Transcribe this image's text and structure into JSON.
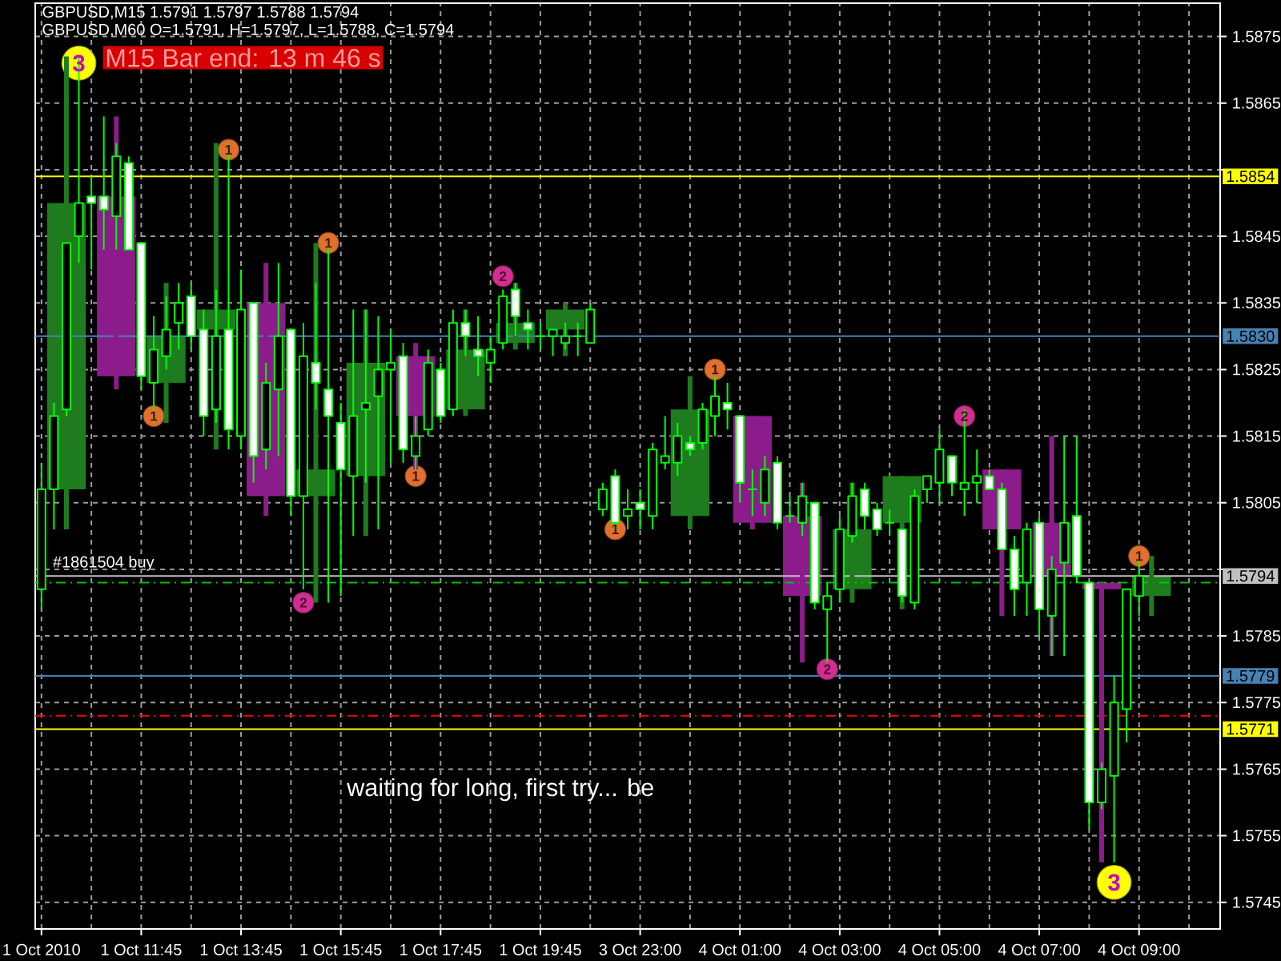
{
  "chart_data": {
    "type": "candlestick",
    "title": "GBPUSD,M15 1.5791 1.5797 1.5788 1.5794",
    "subtitle": "GBPUSD,M60 O=1.5791, H=1.5797, L=1.5788, C=1.5794",
    "categories": [
      "1 Oct 2010",
      null,
      null,
      null,
      null,
      null,
      null,
      null,
      "1 Oct 11:45",
      null,
      null,
      null,
      null,
      null,
      null,
      null,
      "1 Oct 13:45",
      null,
      null,
      null,
      null,
      null,
      null,
      null,
      "1 Oct 15:45",
      null,
      null,
      null,
      null,
      null,
      null,
      null,
      "1 Oct 17:45",
      null,
      null,
      null,
      null,
      null,
      null,
      null,
      "1 Oct 19:45",
      null,
      null,
      null,
      null,
      null,
      null,
      null,
      "3 Oct 23:00",
      null,
      null,
      null,
      null,
      null,
      null,
      null,
      "4 Oct 01:00",
      null,
      null,
      null,
      null,
      null,
      null,
      null,
      "4 Oct 03:00",
      null,
      null,
      null,
      null,
      null,
      null,
      null,
      "4 Oct 05:00",
      null,
      null,
      null,
      null,
      null,
      null,
      null,
      "4 Oct 07:00",
      null,
      null,
      null,
      null,
      null,
      null,
      null,
      "4 Oct 09:00",
      null,
      null,
      null,
      null,
      null,
      null
    ],
    "ohlc": [
      [
        1.5792,
        1.5811,
        1.5789,
        1.5807
      ],
      [
        1.5807,
        1.582,
        1.5801,
        1.5818
      ],
      [
        1.5819,
        1.5844,
        1.5818,
        1.5844
      ],
      [
        1.5845,
        1.5872,
        1.5841,
        1.585
      ],
      [
        1.5851,
        1.5854,
        1.584,
        1.585
      ],
      [
        1.5851,
        1.5863,
        1.5843,
        1.5849
      ],
      [
        1.5848,
        1.5859,
        1.5843,
        1.5857
      ],
      [
        1.5856,
        1.5857,
        1.5843,
        1.5843
      ],
      [
        1.5844,
        1.5844,
        1.5822,
        1.5824
      ],
      [
        1.5823,
        1.5833,
        1.5817,
        1.5828
      ],
      [
        1.5827,
        1.5836,
        1.5825,
        1.5831
      ],
      [
        1.5832,
        1.5838,
        1.5828,
        1.5835
      ],
      [
        1.5836,
        1.5838,
        1.5828,
        1.583
      ],
      [
        1.5831,
        1.5834,
        1.5815,
        1.5818
      ],
      [
        1.5819,
        1.5837,
        1.5817,
        1.583
      ],
      [
        1.5831,
        1.5859,
        1.5813,
        1.5816
      ],
      [
        1.5815,
        1.584,
        1.5813,
        1.5834
      ],
      [
        1.5835,
        1.5835,
        1.5808,
        1.5812
      ],
      [
        1.5813,
        1.5826,
        1.581,
        1.5823
      ],
      [
        1.5822,
        1.5841,
        1.5812,
        1.583
      ],
      [
        1.5831,
        1.5831,
        1.5803,
        1.5806
      ],
      [
        1.5806,
        1.5832,
        1.5792,
        1.5827
      ],
      [
        1.5826,
        1.5838,
        1.5819,
        1.5823
      ],
      [
        1.5822,
        1.5844,
        1.579,
        1.5818
      ],
      [
        1.5817,
        1.582,
        1.5791,
        1.581
      ],
      [
        1.5809,
        1.5834,
        1.58,
        1.5818
      ],
      [
        1.5819,
        1.5834,
        1.5808,
        1.582
      ],
      [
        1.5821,
        1.5833,
        1.5801,
        1.5825
      ],
      [
        1.5825,
        1.5831,
        1.5811,
        1.5826
      ],
      [
        1.5827,
        1.5829,
        1.5811,
        1.5813
      ],
      [
        1.5812,
        1.5818,
        1.581,
        1.5815
      ],
      [
        1.5816,
        1.5828,
        1.5815,
        1.5826
      ],
      [
        1.5825,
        1.5826,
        1.5817,
        1.5818
      ],
      [
        1.5819,
        1.5834,
        1.5818,
        1.5832
      ],
      [
        1.5832,
        1.5834,
        1.5827,
        1.583
      ],
      [
        1.5828,
        1.5833,
        1.5824,
        1.5827
      ],
      [
        1.5826,
        1.583,
        1.5823,
        1.5828
      ],
      [
        1.5829,
        1.5837,
        1.5828,
        1.5836
      ],
      [
        1.5837,
        1.5838,
        1.583,
        1.5833
      ],
      [
        1.5832,
        1.5834,
        1.5828,
        1.5831
      ],
      [
        1.583,
        1.5832,
        1.5828,
        1.583
      ],
      [
        1.583,
        1.5831,
        1.5827,
        1.5831
      ],
      [
        1.5829,
        1.5832,
        1.5828,
        1.583
      ],
      [
        1.583,
        1.5832,
        1.5827,
        1.583
      ],
      [
        1.5829,
        1.5835,
        1.5829,
        1.5834
      ],
      [
        1.5804,
        1.5808,
        1.5803,
        1.5807
      ],
      [
        1.5809,
        1.581,
        1.5801,
        1.5802
      ],
      [
        1.5803,
        1.5807,
        1.5801,
        1.5804
      ],
      [
        1.5805,
        1.5807,
        1.5801,
        1.5804
      ],
      [
        1.5803,
        1.5814,
        1.5801,
        1.5813
      ],
      [
        1.5811,
        1.5818,
        1.581,
        1.5812
      ],
      [
        1.5811,
        1.5817,
        1.5809,
        1.5815
      ],
      [
        1.5814,
        1.5815,
        1.5812,
        1.5813
      ],
      [
        1.5814,
        1.582,
        1.5813,
        1.5819
      ],
      [
        1.5818,
        1.5824,
        1.5815,
        1.5821
      ],
      [
        1.582,
        1.5823,
        1.5816,
        1.5819
      ],
      [
        1.5818,
        1.5818,
        1.5805,
        1.5808
      ],
      [
        1.5807,
        1.581,
        1.5803,
        1.5807
      ],
      [
        1.5805,
        1.5812,
        1.5803,
        1.581
      ],
      [
        1.5811,
        1.5812,
        1.5801,
        1.5802
      ],
      [
        1.5803,
        1.5806,
        1.5802,
        1.5803
      ],
      [
        1.5802,
        1.5808,
        1.58,
        1.5806
      ],
      [
        1.5805,
        1.5805,
        1.5789,
        1.579
      ],
      [
        1.5789,
        1.5793,
        1.5781,
        1.5791
      ],
      [
        1.5792,
        1.5803,
        1.579,
        1.5801
      ],
      [
        1.58,
        1.5808,
        1.5799,
        1.5806
      ],
      [
        1.5807,
        1.5808,
        1.5801,
        1.5803
      ],
      [
        1.5804,
        1.5805,
        1.58,
        1.5801
      ],
      [
        1.5802,
        1.5804,
        1.58,
        1.5802
      ],
      [
        1.5801,
        1.5801,
        1.579,
        1.5791
      ],
      [
        1.579,
        1.5807,
        1.5789,
        1.5806
      ],
      [
        1.5807,
        1.5809,
        1.5805,
        1.5809
      ],
      [
        1.5808,
        1.5816,
        1.5805,
        1.5813
      ],
      [
        1.5812,
        1.5812,
        1.5806,
        1.5808
      ],
      [
        1.5807,
        1.5819,
        1.5803,
        1.5808
      ],
      [
        1.5808,
        1.5813,
        1.5805,
        1.5809
      ],
      [
        1.5809,
        1.581,
        1.5807,
        1.5807
      ],
      [
        1.5807,
        1.5808,
        1.5798,
        1.5798
      ],
      [
        1.5798,
        1.58,
        1.5788,
        1.5792
      ],
      [
        1.5793,
        1.5802,
        1.5788,
        1.5801
      ],
      [
        1.5802,
        1.5803,
        1.5785,
        1.5789
      ],
      [
        1.5788,
        1.5797,
        1.5782,
        1.5795
      ],
      [
        1.5796,
        1.5815,
        1.5782,
        1.5802
      ],
      [
        1.5803,
        1.5815,
        1.5793,
        1.5794
      ],
      [
        1.5793,
        1.5793,
        1.5756,
        1.576
      ],
      [
        1.576,
        1.5766,
        1.5759,
        1.5765
      ],
      [
        1.5764,
        1.5779,
        1.5751,
        1.5775
      ],
      [
        1.5774,
        1.5792,
        1.5769,
        1.5792
      ],
      [
        1.5791,
        1.5797,
        1.5788,
        1.5794
      ],
      null,
      null,
      null,
      null,
      null,
      null
    ],
    "color": "#00ff00",
    "marker": "circle",
    "series": [
      {
        "type": "candlestick",
        "ohlc": [
          null,
          null,
          [
            1.5807,
            1.5872,
            1.5801,
            1.585
          ],
          null,
          null,
          null,
          [
            1.5851,
            1.5863,
            1.5822,
            1.5824
          ],
          null,
          null,
          null,
          [
            1.5823,
            1.5838,
            1.5817,
            1.583
          ],
          null,
          null,
          null,
          [
            1.5831,
            1.5859,
            1.5813,
            1.5834
          ],
          null,
          null,
          null,
          [
            1.5835,
            1.5841,
            1.5803,
            1.5806
          ],
          null,
          null,
          null,
          [
            1.5806,
            1.5844,
            1.579,
            1.581
          ],
          null,
          null,
          null,
          [
            1.5809,
            1.5834,
            1.58,
            1.5826
          ],
          null,
          null,
          null,
          [
            1.5827,
            1.5829,
            1.581,
            1.5818
          ],
          null,
          null,
          null,
          [
            1.5819,
            1.5834,
            1.5818,
            1.5828
          ],
          null,
          null,
          null,
          [
            1.5829,
            1.5838,
            1.5828,
            1.5832
          ],
          null,
          null,
          null,
          [
            1.5831,
            1.5835,
            1.5827,
            1.5834
          ],
          null,
          null,
          null,
          null,
          null,
          null,
          null,
          null,
          null,
          [
            1.5803,
            1.5824,
            1.5801,
            1.5819
          ],
          null,
          null,
          null,
          null,
          [
            1.5818,
            1.5818,
            1.5801,
            1.5802
          ],
          null,
          null,
          null,
          [
            1.5803,
            1.5808,
            1.5781,
            1.5791
          ],
          null,
          null,
          null,
          [
            1.5792,
            1.5808,
            1.579,
            1.5801
          ],
          null,
          null,
          null,
          [
            1.5802,
            1.5809,
            1.5789,
            1.5809
          ],
          null,
          null,
          null,
          null,
          null,
          null,
          null,
          [
            1.581,
            1.581,
            1.5788,
            1.5801
          ],
          null,
          null,
          null,
          [
            1.5802,
            1.5815,
            1.5782,
            1.5794
          ],
          null,
          null,
          null,
          [
            1.5793,
            1.5793,
            1.5751,
            1.5792
          ],
          null,
          null,
          null,
          [
            1.5791,
            1.5797,
            1.5788,
            1.5794
          ],
          null,
          null,
          null,
          null,
          null
        ],
        "colors": [
          null,
          null,
          "#1e7b1e",
          null,
          null,
          null,
          "#8c1c8c",
          null,
          null,
          null,
          "#1e7b1e",
          null,
          null,
          null,
          "#1e7b1e",
          null,
          null,
          null,
          "#8c1c8c",
          null,
          null,
          null,
          "#1e7b1e",
          null,
          null,
          null,
          "#1e7b1e",
          null,
          null,
          null,
          "#8c1c8c",
          null,
          null,
          null,
          "#1e7b1e",
          null,
          null,
          null,
          "#1e7b1e",
          null,
          null,
          null,
          "#1e7b1e",
          null,
          null,
          null,
          null,
          null,
          null,
          null,
          null,
          null,
          "#1e7b1e",
          null,
          null,
          null,
          null,
          "#8c1c8c",
          null,
          null,
          null,
          "#8c1c8c",
          null,
          null,
          null,
          "#1e7b1e",
          null,
          null,
          null,
          "#1e7b1e",
          null,
          null,
          null,
          null,
          null,
          null,
          null,
          "#8c1c8c",
          null,
          null,
          null,
          "#8c1c8c",
          null,
          null,
          null,
          "#8c1c8c",
          null,
          null,
          null,
          "#1e7b1e",
          null,
          null,
          null,
          null,
          null
        ]
      },
      {
        "type": "scatter",
        "name": "1",
        "color": "#e07030",
        "values": [
          null,
          null,
          null,
          null,
          null,
          null,
          null,
          null,
          null,
          1.5818,
          null,
          null,
          null,
          null,
          null,
          1.5858,
          null,
          null,
          null,
          null,
          null,
          null,
          null,
          1.5844,
          null,
          null,
          null,
          null,
          null,
          null,
          1.5809,
          null,
          null,
          null,
          null,
          null,
          null,
          null,
          null,
          null,
          null,
          null,
          null,
          null,
          null,
          null,
          1.5801,
          null,
          null,
          null,
          null,
          null,
          null,
          null,
          1.5825,
          null,
          null,
          null,
          null,
          null,
          null,
          null,
          null,
          null,
          null,
          null,
          null,
          null,
          null,
          null,
          null,
          null,
          null,
          null,
          null,
          null,
          null,
          null,
          null,
          null,
          null,
          null,
          null,
          null,
          null,
          null,
          null,
          null,
          1.5797,
          null,
          null,
          null,
          null,
          null,
          null
        ]
      },
      {
        "type": "scatter",
        "name": "2",
        "color": "#d02f90",
        "values": [
          null,
          null,
          null,
          null,
          null,
          null,
          null,
          null,
          null,
          null,
          null,
          null,
          null,
          null,
          null,
          null,
          null,
          null,
          null,
          null,
          null,
          1.579,
          null,
          null,
          null,
          null,
          null,
          null,
          null,
          null,
          null,
          null,
          null,
          null,
          null,
          null,
          null,
          1.5839,
          null,
          null,
          null,
          null,
          null,
          null,
          null,
          null,
          null,
          null,
          null,
          null,
          null,
          null,
          null,
          null,
          null,
          null,
          null,
          null,
          null,
          null,
          null,
          null,
          null,
          1.578,
          null,
          null,
          null,
          null,
          null,
          null,
          null,
          null,
          null,
          null,
          1.5818,
          null,
          null,
          null,
          null,
          null,
          null,
          null,
          null,
          null,
          null,
          null,
          null,
          null,
          null,
          null,
          null,
          null,
          null,
          null,
          null
        ]
      },
      {
        "type": "scatter",
        "name": "3",
        "color": "#ffff00",
        "values": [
          null,
          null,
          null,
          1.5871,
          null,
          null,
          null,
          null,
          null,
          null,
          null,
          null,
          null,
          null,
          null,
          null,
          null,
          null,
          null,
          null,
          null,
          null,
          null,
          null,
          null,
          null,
          null,
          null,
          null,
          null,
          null,
          null,
          null,
          null,
          null,
          null,
          null,
          null,
          null,
          null,
          null,
          null,
          null,
          null,
          null,
          null,
          null,
          null,
          null,
          null,
          null,
          null,
          null,
          null,
          null,
          null,
          null,
          null,
          null,
          null,
          null,
          null,
          null,
          null,
          null,
          null,
          null,
          null,
          null,
          null,
          null,
          null,
          null,
          null,
          null,
          null,
          null,
          null,
          null,
          null,
          null,
          null,
          null,
          null,
          null,
          null,
          1.5748,
          null,
          null,
          null,
          null,
          null,
          null,
          null,
          null
        ]
      }
    ],
    "ylim": [
      1.5741,
      1.588
    ],
    "yticks": [
      1.5745,
      1.5755,
      1.5765,
      1.5775,
      1.5785,
      {
        "value": 1.5795,
        "label": null
      },
      1.5805,
      1.5815,
      1.5825,
      1.5835,
      1.5845,
      {
        "value": 1.5855,
        "label": null
      },
      1.5865,
      1.5875
    ],
    "grid": true,
    "ref_lines": [
      {
        "axis": "y",
        "value": 1.5854,
        "label": "1.5854",
        "color": "#ffff00"
      },
      {
        "axis": "y",
        "value": 1.583,
        "label": "1.5830",
        "color": "#4682b4"
      },
      {
        "axis": "y",
        "value": 1.5779,
        "label": "1.5779",
        "color": "#4682b4"
      },
      {
        "axis": "y",
        "value": 1.5771,
        "label": "1.5771",
        "color": "#ffff00"
      },
      {
        "axis": "y",
        "value": 1.5794,
        "label": "1.5794",
        "color": "#c0c0c0"
      },
      {
        "axis": "y",
        "value": 1.5793,
        "label": "#1861504 buy",
        "color": "#00c000",
        "line_style": "dashed"
      },
      {
        "axis": "y",
        "value": 1.5773,
        "color": "#ff0000",
        "line_style": "dashed"
      }
    ],
    "annotations": [
      "M15 Bar end: 13 m 46 s",
      "waiting for long, first try... be"
    ]
  }
}
